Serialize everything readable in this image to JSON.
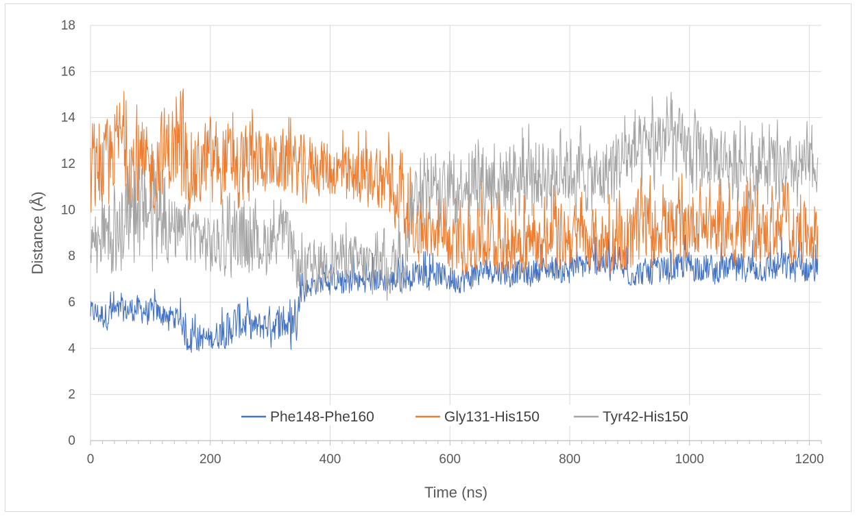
{
  "chart_data": {
    "type": "line",
    "title": "",
    "xlabel": "Time (ns)",
    "ylabel": "Distance (Å)",
    "xlim": [
      0,
      1220
    ],
    "ylim": [
      0,
      18
    ],
    "x_ticks": [
      "0",
      "200",
      "400",
      "600",
      "800",
      "1000",
      "1200"
    ],
    "y_ticks": [
      "0",
      "2",
      "4",
      "6",
      "8",
      "10",
      "12",
      "14",
      "16",
      "18"
    ],
    "grid": true,
    "legend_position": "bottom-right inside plot",
    "x_range_data": [
      0,
      1215
    ],
    "series": [
      {
        "name": "Phe148-Phe160",
        "color": "#4472C4",
        "x": [
          0,
          25,
          50,
          75,
          100,
          125,
          150,
          160,
          175,
          200,
          225,
          250,
          275,
          300,
          325,
          345,
          350,
          375,
          400,
          425,
          450,
          475,
          500,
          525,
          540,
          575,
          600,
          625,
          650,
          675,
          700,
          725,
          750,
          775,
          800,
          825,
          850,
          875,
          900,
          925,
          950,
          975,
          1000,
          1025,
          1050,
          1075,
          1100,
          1125,
          1150,
          1175,
          1200,
          1215
        ],
        "values": [
          5.6,
          5.4,
          5.6,
          5.7,
          5.6,
          5.5,
          5.3,
          4.4,
          4.5,
          4.4,
          4.8,
          5.2,
          4.9,
          5.1,
          5.0,
          5.2,
          6.5,
          6.8,
          6.9,
          7.0,
          6.9,
          7.0,
          6.9,
          7.1,
          7.3,
          7.3,
          7.0,
          7.0,
          7.3,
          7.4,
          7.3,
          7.3,
          7.4,
          7.5,
          7.4,
          7.6,
          7.8,
          7.6,
          7.2,
          7.3,
          7.4,
          7.5,
          7.6,
          7.5,
          7.4,
          7.6,
          7.5,
          7.4,
          7.6,
          7.5,
          7.4,
          7.4
        ],
        "range_low": [
          5.0,
          4.7,
          5.0,
          5.0,
          5.1,
          5.0,
          4.8,
          3.8,
          3.9,
          3.9,
          4.1,
          4.2,
          4.2,
          4.0,
          3.9,
          4.4,
          6.1,
          6.4,
          6.5,
          6.5,
          6.4,
          6.5,
          6.3,
          6.5,
          6.7,
          6.7,
          6.4,
          6.5,
          6.7,
          6.8,
          6.8,
          6.8,
          6.9,
          7.0,
          6.9,
          7.0,
          7.1,
          7.0,
          6.8,
          6.8,
          6.9,
          7.0,
          7.0,
          6.9,
          6.9,
          7.0,
          6.9,
          6.9,
          7.0,
          6.9,
          6.9,
          6.8
        ],
        "range_high": [
          6.3,
          6.3,
          6.4,
          6.6,
          6.5,
          6.3,
          6.1,
          5.3,
          5.5,
          5.2,
          6.1,
          6.6,
          5.8,
          6.0,
          5.8,
          6.1,
          7.4,
          7.7,
          7.7,
          7.9,
          7.8,
          7.9,
          7.8,
          8.0,
          8.1,
          8.2,
          8.0,
          8.1,
          8.3,
          8.3,
          8.4,
          8.2,
          8.3,
          8.5,
          8.3,
          8.6,
          8.8,
          8.5,
          8.2,
          8.3,
          8.4,
          8.5,
          8.8,
          8.6,
          8.4,
          8.6,
          8.6,
          8.4,
          8.6,
          8.6,
          8.5,
          8.4
        ]
      },
      {
        "name": "Gly131-His150",
        "color": "#ED7D31",
        "x": [
          0,
          25,
          50,
          75,
          100,
          125,
          150,
          175,
          200,
          225,
          250,
          275,
          300,
          325,
          350,
          375,
          400,
          425,
          450,
          475,
          500,
          525,
          540,
          575,
          600,
          625,
          650,
          675,
          700,
          725,
          750,
          775,
          800,
          825,
          850,
          875,
          900,
          925,
          950,
          975,
          1000,
          1025,
          1050,
          1075,
          1100,
          1125,
          1150,
          1175,
          1200,
          1215
        ],
        "values": [
          11.2,
          12.0,
          13.2,
          11.8,
          11.5,
          12.5,
          12.8,
          11.5,
          12.4,
          12.2,
          12.0,
          12.3,
          12.1,
          12.0,
          11.9,
          12.0,
          11.8,
          11.5,
          11.4,
          11.7,
          11.3,
          11.0,
          8.8,
          8.9,
          8.6,
          8.4,
          8.8,
          8.5,
          8.6,
          8.7,
          8.5,
          8.8,
          8.9,
          8.6,
          8.7,
          8.6,
          8.9,
          9.4,
          9.3,
          9.1,
          9.5,
          9.4,
          9.3,
          9.0,
          9.2,
          9.0,
          9.1,
          8.9,
          9.0,
          9.1
        ],
        "range_low": [
          9.3,
          9.8,
          10.7,
          8.2,
          8.7,
          9.8,
          10.2,
          9.6,
          10.3,
          10.2,
          10.1,
          10.5,
          10.5,
          10.4,
          10.3,
          10.6,
          10.5,
          10.3,
          10.3,
          10.3,
          9.7,
          8.8,
          7.6,
          7.7,
          7.3,
          7.2,
          7.4,
          7.3,
          7.2,
          7.3,
          7.4,
          7.5,
          7.4,
          7.3,
          7.4,
          7.3,
          7.3,
          7.5,
          7.6,
          7.4,
          7.8,
          7.8,
          7.8,
          7.6,
          7.8,
          7.7,
          7.7,
          7.6,
          7.7,
          7.6
        ],
        "range_high": [
          13.6,
          14.4,
          15.6,
          14.6,
          14.0,
          15.3,
          15.1,
          14.3,
          14.8,
          14.6,
          14.4,
          14.6,
          14.0,
          14.3,
          13.8,
          13.9,
          13.7,
          13.6,
          13.4,
          13.8,
          13.6,
          13.9,
          10.5,
          10.6,
          10.7,
          10.4,
          11.6,
          10.8,
          10.8,
          10.9,
          10.5,
          11.1,
          11.4,
          10.7,
          11.2,
          10.7,
          11.5,
          11.6,
          11.4,
          11.2,
          11.6,
          11.3,
          11.3,
          11.0,
          11.4,
          11.3,
          11.2,
          11.0,
          11.2,
          11.0
        ]
      },
      {
        "name": "Tyr42-His150",
        "color": "#A5A5A5",
        "x": [
          0,
          25,
          50,
          75,
          100,
          125,
          150,
          175,
          200,
          225,
          250,
          275,
          300,
          325,
          350,
          375,
          400,
          425,
          450,
          475,
          500,
          525,
          540,
          575,
          600,
          625,
          650,
          675,
          700,
          725,
          750,
          775,
          800,
          825,
          850,
          875,
          900,
          925,
          950,
          975,
          1000,
          1025,
          1050,
          1075,
          1100,
          1125,
          1150,
          1175,
          1200,
          1215
        ],
        "values": [
          8.7,
          9.0,
          9.2,
          10.2,
          10.0,
          9.3,
          8.9,
          9.1,
          8.4,
          8.6,
          8.8,
          8.3,
          8.8,
          9.0,
          7.3,
          7.7,
          7.8,
          8.0,
          7.7,
          7.6,
          7.5,
          8.2,
          10.8,
          11.0,
          10.9,
          11.3,
          11.5,
          11.2,
          11.4,
          11.8,
          11.5,
          11.6,
          11.7,
          11.4,
          11.3,
          12.0,
          12.4,
          12.7,
          13.3,
          13.0,
          12.5,
          12.3,
          12.4,
          12.1,
          12.0,
          12.0,
          11.8,
          11.8,
          11.9,
          11.9
        ],
        "range_low": [
          7.1,
          7.1,
          7.4,
          7.7,
          7.3,
          7.2,
          7.2,
          7.3,
          7.0,
          7.2,
          7.1,
          7.0,
          7.2,
          7.5,
          6.3,
          6.6,
          6.6,
          6.7,
          6.3,
          6.2,
          6.0,
          6.6,
          9.0,
          9.2,
          9.4,
          9.5,
          9.4,
          9.3,
          9.2,
          9.8,
          9.2,
          9.3,
          9.7,
          9.3,
          9.3,
          10.0,
          10.4,
          10.8,
          11.2,
          10.9,
          10.5,
          10.4,
          10.6,
          10.3,
          10.2,
          10.2,
          10.1,
          10.1,
          10.2,
          10.3
        ],
        "range_high": [
          10.2,
          11.0,
          11.1,
          12.4,
          12.6,
          11.6,
          10.6,
          11.0,
          10.4,
          10.5,
          10.9,
          10.2,
          10.3,
          10.6,
          8.9,
          9.2,
          9.1,
          9.5,
          9.2,
          9.1,
          9.2,
          10.1,
          12.4,
          12.6,
          12.5,
          12.9,
          13.3,
          13.1,
          13.3,
          13.8,
          13.4,
          13.5,
          13.6,
          13.3,
          13.2,
          14.0,
          14.3,
          14.6,
          15.1,
          14.8,
          14.4,
          14.2,
          14.2,
          13.9,
          13.9,
          13.8,
          13.7,
          13.6,
          13.6,
          13.5
        ]
      }
    ]
  }
}
